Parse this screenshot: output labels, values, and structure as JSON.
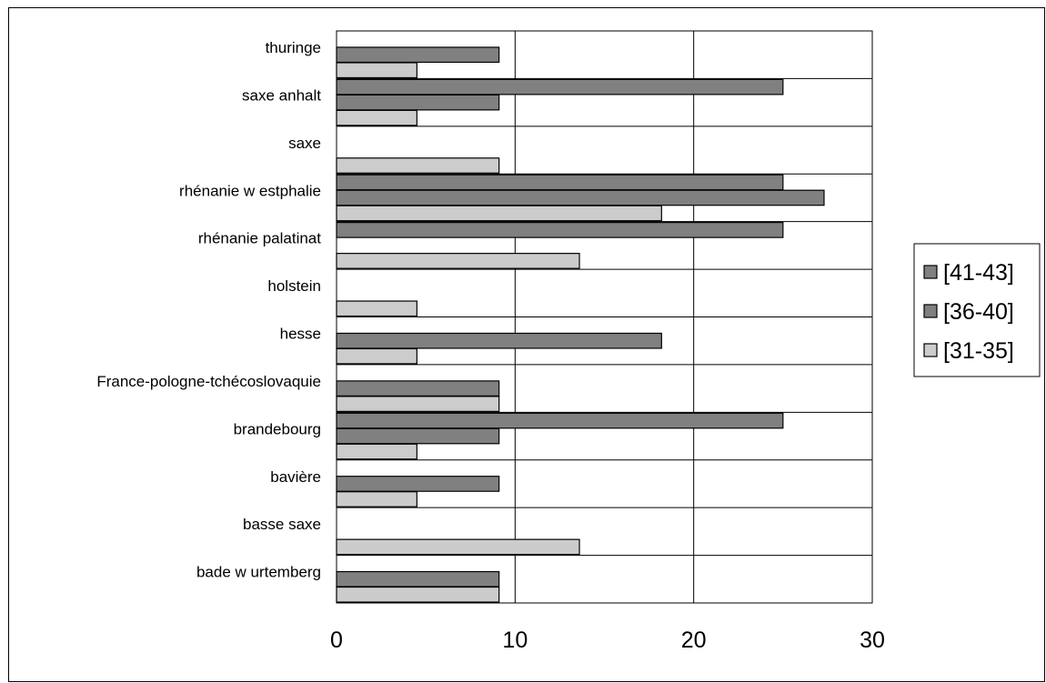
{
  "chart_data": {
    "type": "bar",
    "orientation": "horizontal",
    "title": "",
    "xlabel": "",
    "ylabel": "",
    "xlim": [
      0,
      30
    ],
    "x_ticks": [
      "0",
      "10",
      "20",
      "30"
    ],
    "grid": true,
    "legend_position": "right",
    "categories": [
      "thuringe",
      "saxe anhalt",
      "saxe",
      "rhénanie w estphalie",
      "rhénanie palatinat",
      "holstein",
      "hesse",
      "France-pologne-tchécoslovaquie",
      "brandebourg",
      "bavière",
      "basse saxe",
      "bade w urtemberg"
    ],
    "series": [
      {
        "name": "[41-43]",
        "color": "#808080",
        "values": [
          0,
          25,
          0,
          25,
          25,
          0,
          0,
          0,
          25,
          0,
          0,
          0
        ]
      },
      {
        "name": "[36-40]",
        "color": "#808080",
        "values": [
          9.1,
          9.1,
          0,
          27.3,
          0,
          0,
          18.2,
          9.1,
          9.1,
          9.1,
          0,
          9.1
        ]
      },
      {
        "name": "[31-35]",
        "color": "#cccccc",
        "values": [
          4.5,
          4.5,
          9.1,
          18.2,
          13.6,
          4.5,
          4.5,
          9.1,
          4.5,
          4.5,
          13.6,
          9.1
        ]
      }
    ]
  }
}
